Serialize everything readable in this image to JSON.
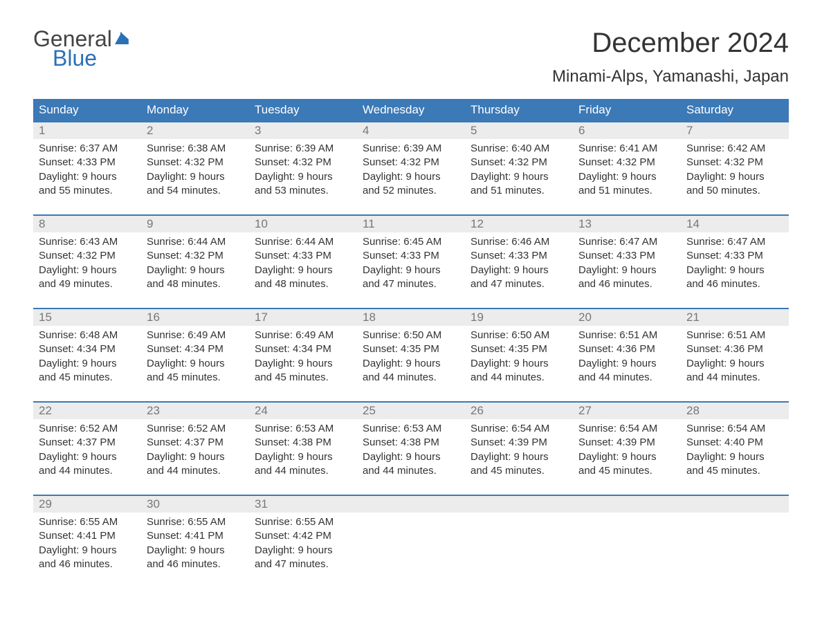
{
  "brand": {
    "line1": "General",
    "line2": "Blue"
  },
  "title": "December 2024",
  "location": "Minami-Alps, Yamanashi, Japan",
  "colors": {
    "header_bg": "#3b79b7",
    "header_text": "#ffffff",
    "daynum_bg": "#ececec",
    "daynum_text": "#777777",
    "body_text": "#333333",
    "rule": "#3b79b7",
    "brand_blue": "#2a70b8"
  },
  "dow": [
    "Sunday",
    "Monday",
    "Tuesday",
    "Wednesday",
    "Thursday",
    "Friday",
    "Saturday"
  ],
  "labels": {
    "sunrise": "Sunrise:",
    "sunset": "Sunset:",
    "daylight_prefix": "Daylight:",
    "and": "and"
  },
  "weeks": [
    [
      {
        "n": "1",
        "sr": "6:37 AM",
        "ss": "4:33 PM",
        "dh": "9 hours",
        "dm": "55 minutes."
      },
      {
        "n": "2",
        "sr": "6:38 AM",
        "ss": "4:32 PM",
        "dh": "9 hours",
        "dm": "54 minutes."
      },
      {
        "n": "3",
        "sr": "6:39 AM",
        "ss": "4:32 PM",
        "dh": "9 hours",
        "dm": "53 minutes."
      },
      {
        "n": "4",
        "sr": "6:39 AM",
        "ss": "4:32 PM",
        "dh": "9 hours",
        "dm": "52 minutes."
      },
      {
        "n": "5",
        "sr": "6:40 AM",
        "ss": "4:32 PM",
        "dh": "9 hours",
        "dm": "51 minutes."
      },
      {
        "n": "6",
        "sr": "6:41 AM",
        "ss": "4:32 PM",
        "dh": "9 hours",
        "dm": "51 minutes."
      },
      {
        "n": "7",
        "sr": "6:42 AM",
        "ss": "4:32 PM",
        "dh": "9 hours",
        "dm": "50 minutes."
      }
    ],
    [
      {
        "n": "8",
        "sr": "6:43 AM",
        "ss": "4:32 PM",
        "dh": "9 hours",
        "dm": "49 minutes."
      },
      {
        "n": "9",
        "sr": "6:44 AM",
        "ss": "4:32 PM",
        "dh": "9 hours",
        "dm": "48 minutes."
      },
      {
        "n": "10",
        "sr": "6:44 AM",
        "ss": "4:33 PM",
        "dh": "9 hours",
        "dm": "48 minutes."
      },
      {
        "n": "11",
        "sr": "6:45 AM",
        "ss": "4:33 PM",
        "dh": "9 hours",
        "dm": "47 minutes."
      },
      {
        "n": "12",
        "sr": "6:46 AM",
        "ss": "4:33 PM",
        "dh": "9 hours",
        "dm": "47 minutes."
      },
      {
        "n": "13",
        "sr": "6:47 AM",
        "ss": "4:33 PM",
        "dh": "9 hours",
        "dm": "46 minutes."
      },
      {
        "n": "14",
        "sr": "6:47 AM",
        "ss": "4:33 PM",
        "dh": "9 hours",
        "dm": "46 minutes."
      }
    ],
    [
      {
        "n": "15",
        "sr": "6:48 AM",
        "ss": "4:34 PM",
        "dh": "9 hours",
        "dm": "45 minutes."
      },
      {
        "n": "16",
        "sr": "6:49 AM",
        "ss": "4:34 PM",
        "dh": "9 hours",
        "dm": "45 minutes."
      },
      {
        "n": "17",
        "sr": "6:49 AM",
        "ss": "4:34 PM",
        "dh": "9 hours",
        "dm": "45 minutes."
      },
      {
        "n": "18",
        "sr": "6:50 AM",
        "ss": "4:35 PM",
        "dh": "9 hours",
        "dm": "44 minutes."
      },
      {
        "n": "19",
        "sr": "6:50 AM",
        "ss": "4:35 PM",
        "dh": "9 hours",
        "dm": "44 minutes."
      },
      {
        "n": "20",
        "sr": "6:51 AM",
        "ss": "4:36 PM",
        "dh": "9 hours",
        "dm": "44 minutes."
      },
      {
        "n": "21",
        "sr": "6:51 AM",
        "ss": "4:36 PM",
        "dh": "9 hours",
        "dm": "44 minutes."
      }
    ],
    [
      {
        "n": "22",
        "sr": "6:52 AM",
        "ss": "4:37 PM",
        "dh": "9 hours",
        "dm": "44 minutes."
      },
      {
        "n": "23",
        "sr": "6:52 AM",
        "ss": "4:37 PM",
        "dh": "9 hours",
        "dm": "44 minutes."
      },
      {
        "n": "24",
        "sr": "6:53 AM",
        "ss": "4:38 PM",
        "dh": "9 hours",
        "dm": "44 minutes."
      },
      {
        "n": "25",
        "sr": "6:53 AM",
        "ss": "4:38 PM",
        "dh": "9 hours",
        "dm": "44 minutes."
      },
      {
        "n": "26",
        "sr": "6:54 AM",
        "ss": "4:39 PM",
        "dh": "9 hours",
        "dm": "45 minutes."
      },
      {
        "n": "27",
        "sr": "6:54 AM",
        "ss": "4:39 PM",
        "dh": "9 hours",
        "dm": "45 minutes."
      },
      {
        "n": "28",
        "sr": "6:54 AM",
        "ss": "4:40 PM",
        "dh": "9 hours",
        "dm": "45 minutes."
      }
    ],
    [
      {
        "n": "29",
        "sr": "6:55 AM",
        "ss": "4:41 PM",
        "dh": "9 hours",
        "dm": "46 minutes."
      },
      {
        "n": "30",
        "sr": "6:55 AM",
        "ss": "4:41 PM",
        "dh": "9 hours",
        "dm": "46 minutes."
      },
      {
        "n": "31",
        "sr": "6:55 AM",
        "ss": "4:42 PM",
        "dh": "9 hours",
        "dm": "47 minutes."
      },
      null,
      null,
      null,
      null
    ]
  ]
}
